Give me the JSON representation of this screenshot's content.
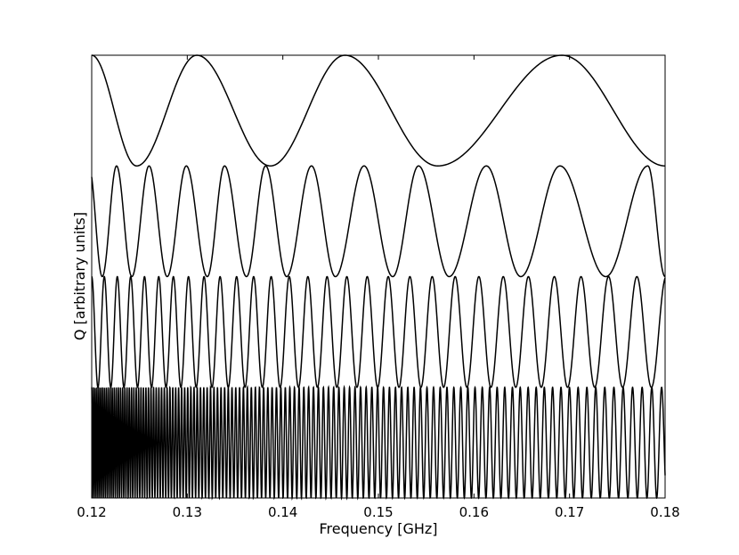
{
  "chart_data": {
    "type": "line",
    "title": "",
    "xlabel": "Frequency [GHz]",
    "ylabel": "Q [arbitrary units]",
    "xlim": [
      0.12,
      0.18
    ],
    "x_ticks": [
      "0.12",
      "0.13",
      "0.14",
      "0.15",
      "0.16",
      "0.17",
      "0.18"
    ],
    "y_ticks_shown": false,
    "grid": false,
    "legend": "none",
    "line_color": "#000000",
    "series": [
      {
        "extrema_frequencies": [
          0.12,
          0.1247,
          0.131,
          0.1387,
          0.1465,
          0.1562,
          0.1692,
          0.18
        ],
        "y_range": [
          3.0,
          4.0
        ]
      },
      {
        "extrema_frequencies": [
          0.12,
          0.1211,
          0.1226,
          0.1242,
          0.126,
          0.1279,
          0.1299,
          0.1321,
          0.1339,
          0.1362,
          0.1382,
          0.1404,
          0.143,
          0.1455,
          0.1485,
          0.1515,
          0.1542,
          0.1574,
          0.1613,
          0.1649,
          0.169,
          0.1738,
          0.1782,
          0.18
        ],
        "y_range": [
          2.0,
          3.0
        ]
      },
      {
        "start_frequency": 0.12,
        "end_frequency": 0.18,
        "start_period": 0.0013,
        "end_period": 0.0031,
        "y_range": [
          1.0,
          2.0
        ]
      },
      {
        "start_frequency": 0.12,
        "end_frequency": 0.18,
        "start_period": 0.00018,
        "end_period": 0.00104,
        "y_range": [
          0.0,
          1.0
        ]
      }
    ]
  }
}
